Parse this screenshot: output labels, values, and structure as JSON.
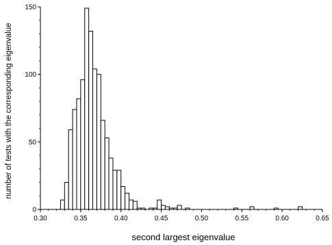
{
  "chart_data": {
    "type": "bar",
    "subtype": "histogram",
    "xlabel": "second largest eigenvalue",
    "ylabel": "number of tests with the corresponding eigenvalue",
    "xlim": [
      0.3,
      0.65
    ],
    "ylim": [
      0,
      150
    ],
    "xticks": [
      "0.30",
      "0.35",
      "0.40",
      "0.45",
      "0.50",
      "0.55",
      "0.60",
      "0.65"
    ],
    "yticks": [
      "0",
      "50",
      "100",
      "150"
    ],
    "grid": false,
    "bin_width": 0.005,
    "bin_start": [
      0.325,
      0.33,
      0.335,
      0.34,
      0.345,
      0.35,
      0.355,
      0.36,
      0.365,
      0.37,
      0.375,
      0.38,
      0.385,
      0.39,
      0.395,
      0.4,
      0.405,
      0.41,
      0.415,
      0.42,
      0.425,
      0.43,
      0.435,
      0.44,
      0.445,
      0.45,
      0.455,
      0.46,
      0.465,
      0.47,
      0.475,
      0.48,
      0.485,
      0.49,
      0.495,
      0.5,
      0.505,
      0.51,
      0.515,
      0.52,
      0.525,
      0.53,
      0.535,
      0.54,
      0.545,
      0.55,
      0.555,
      0.56,
      0.565,
      0.57,
      0.575,
      0.58,
      0.585,
      0.59,
      0.595,
      0.6,
      0.605,
      0.61,
      0.615,
      0.62
    ],
    "values": [
      7,
      20,
      59,
      74,
      82,
      96,
      149,
      132,
      104,
      100,
      66,
      53,
      38,
      29,
      29,
      17,
      12,
      7,
      6,
      1,
      1,
      0,
      1,
      1,
      7,
      3,
      2,
      1,
      1,
      3,
      0,
      1,
      0,
      0,
      0,
      0,
      0,
      0,
      0,
      0,
      0,
      0,
      0,
      1,
      0,
      0,
      0,
      2,
      0,
      0,
      0,
      0,
      0,
      1,
      0,
      0,
      0,
      0,
      0,
      2
    ]
  }
}
